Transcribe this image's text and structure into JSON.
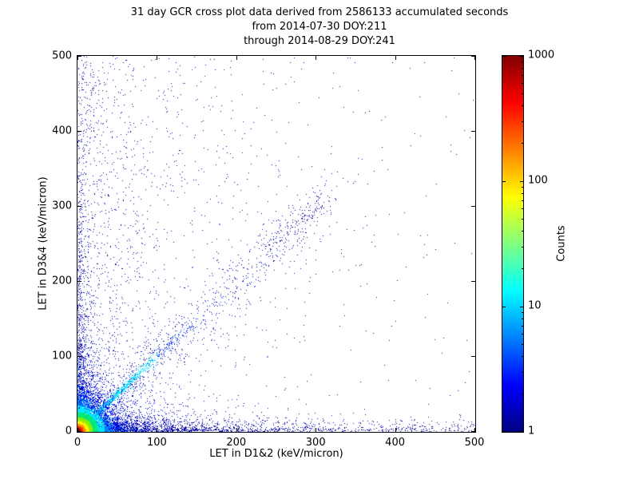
{
  "figure": {
    "background": "#ffffff"
  },
  "chart_data": {
    "type": "scatter",
    "title_line1": "31 day GCR cross plot data derived from 2586133 accumulated seconds",
    "title_line2": "from 2014-07-30 DOY:211",
    "title_line3": "through 2014-08-29 DOY:241",
    "xlabel": "LET in D1&2 (keV/micron)",
    "ylabel": "LET in D3&4 (keV/micron)",
    "xlim": [
      0,
      500
    ],
    "ylim": [
      0,
      500
    ],
    "xticks": [
      0,
      100,
      200,
      300,
      400,
      500
    ],
    "yticks": [
      0,
      100,
      200,
      300,
      400,
      500
    ],
    "grid": false,
    "colorbar": {
      "label": "Counts",
      "scale": "log",
      "min": 1,
      "max": 1000,
      "ticks": [
        1,
        10,
        100,
        1000
      ],
      "colormap": "jet",
      "gradient_stops": [
        [
          "#000080",
          0
        ],
        [
          "#0000ff",
          0.125
        ],
        [
          "#00ffff",
          0.375
        ],
        [
          "#ffff00",
          0.625
        ],
        [
          "#ff0000",
          0.875
        ],
        [
          "#800000",
          1
        ]
      ]
    },
    "description": "2-D histogram style cross plot: an intense hot spot at the origin (counts approaching 1000, red/yellow core fading through green and cyan to blue), a bright cyan diagonal ridge y≈x extending to about 90 keV/micron then continuing as sparse blue points to about 300, bright bands hugging both axes near zero, and sparse single-count dark-blue events scattered over the plane, densest at low LET values.",
    "point_clusters": [
      {
        "name": "background-left",
        "type": "expx-powy",
        "n": 1500,
        "x_scale": 70,
        "y_exp": 1.2,
        "colors": [
          "#00008f",
          "#0000b4"
        ]
      },
      {
        "name": "background-wide",
        "type": "uniform2d",
        "n": 260,
        "colors": [
          "#00008f"
        ]
      },
      {
        "name": "bottom-band",
        "type": "expxy",
        "n": 1600,
        "x_scale": 110,
        "y_scale": 7,
        "colors": [
          "#00008f",
          "#0000c8"
        ]
      },
      {
        "name": "bottom-band-far",
        "type": "uniformx-expy",
        "n": 450,
        "y_scale": 6,
        "colors": [
          "#00008f"
        ]
      },
      {
        "name": "left-band",
        "type": "expxy",
        "n": 900,
        "x_scale": 6,
        "y_scale": 150,
        "colors": [
          "#00008f",
          "#0000c8"
        ]
      },
      {
        "name": "diagonal-faint",
        "type": "diag-uniform",
        "n": 550,
        "t_min": 50,
        "t_max": 320,
        "sigma0": 3,
        "sigma_slope": 0.09,
        "colors": [
          "#00008f",
          "#0000d0"
        ]
      },
      {
        "name": "diagonal-clump",
        "type": "diag-uniform",
        "n": 150,
        "t_min": 240,
        "t_max": 315,
        "sigma0": 8,
        "sigma_slope": 0,
        "colors": [
          "#00008f"
        ]
      },
      {
        "name": "diagonal-bright",
        "type": "diag-exp",
        "n": 1500,
        "t_scale": 40,
        "t_max": 260,
        "sigma0": 1,
        "sigma_slope": 0.02,
        "t_split": 100,
        "color_near": "#00e0ff",
        "color_far": "#0040ff"
      },
      {
        "name": "bottom-axis-bright",
        "type": "expxy",
        "n": 500,
        "x_scale": 16,
        "y_scale": 1.5,
        "colors": [
          "#00e0ff",
          "#33ee66",
          "#00ffcc"
        ]
      },
      {
        "name": "left-axis-bright",
        "type": "expxy",
        "n": 250,
        "x_scale": 1.5,
        "y_scale": 22,
        "colors": [
          "#00e0ff",
          "#00c8ff"
        ]
      },
      {
        "name": "core-halo",
        "type": "expxy",
        "n": 3000,
        "x_scale": 26,
        "y_scale": 26,
        "colors": [
          "#0000c8",
          "#0028ff"
        ]
      },
      {
        "name": "core",
        "type": "core",
        "n": 11000,
        "x_scale": 9,
        "y_scale": 9,
        "rings": [
          [
            4,
            "#990000"
          ],
          [
            7,
            "#ee2200"
          ],
          [
            10,
            "#ff8800"
          ],
          [
            14,
            "#ffee00"
          ],
          [
            19,
            "#88ee00"
          ],
          [
            26,
            "#00e87a"
          ],
          [
            34,
            "#00e5ff"
          ],
          [
            46,
            "#0080ff"
          ],
          [
            9999,
            "#0028ff"
          ]
        ]
      }
    ]
  }
}
